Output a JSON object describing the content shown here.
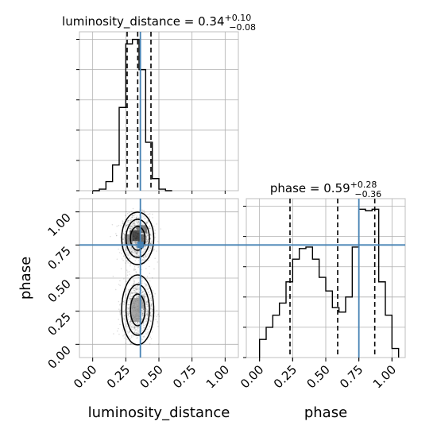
{
  "chart_data": [
    {
      "type": "histogram",
      "panel": "luminosity_distance marginal",
      "title": {
        "param": "luminosity_distance",
        "value": "0.34",
        "plus": "+0.10",
        "minus": "−0.08"
      },
      "x_range": [
        -0.1,
        1.1
      ],
      "y_range": [
        0,
        1.05
      ],
      "y_ticks": [
        0,
        0.2,
        0.4,
        0.6,
        0.8,
        1.0
      ],
      "grid": true,
      "bin_edges": [
        0.0,
        0.05,
        0.1,
        0.15,
        0.2,
        0.25,
        0.3,
        0.35,
        0.4,
        0.45,
        0.5,
        0.55,
        0.6
      ],
      "values": [
        0.0,
        0.01,
        0.06,
        0.17,
        0.55,
        0.97,
        1.0,
        0.8,
        0.32,
        0.08,
        0.01,
        0.0
      ],
      "quantiles": [
        0.26,
        0.34,
        0.44
      ],
      "truth": 0.36
    },
    {
      "type": "histogram",
      "panel": "phase marginal",
      "title": {
        "param": "phase",
        "value": "0.59",
        "plus": "+0.28",
        "minus": "−0.36"
      },
      "x_range": [
        -0.1,
        1.1
      ],
      "y_range": [
        0,
        1.05
      ],
      "y_ticks": [
        0,
        0.2,
        0.4,
        0.6,
        0.8,
        1.0
      ],
      "grid": true,
      "bin_edges": [
        0.0,
        0.05,
        0.1,
        0.15,
        0.2,
        0.25,
        0.3,
        0.35,
        0.4,
        0.45,
        0.5,
        0.55,
        0.6,
        0.65,
        0.7,
        0.75,
        0.8,
        0.85,
        0.9,
        0.95,
        1.0,
        1.05
      ],
      "values": [
        0.12,
        0.2,
        0.28,
        0.36,
        0.5,
        0.65,
        0.72,
        0.73,
        0.65,
        0.53,
        0.44,
        0.33,
        0.3,
        0.4,
        0.73,
        0.98,
        0.97,
        0.98,
        0.5,
        0.28,
        0.06
      ],
      "quantiles": [
        0.23,
        0.59,
        0.87
      ],
      "truth": 0.75
    },
    {
      "type": "2d-histogram",
      "panel": "luminosity_distance vs phase",
      "xlabel": "luminosity_distance",
      "ylabel": "phase",
      "x_range": [
        -0.1,
        1.1
      ],
      "y_range": [
        -0.1,
        1.1
      ],
      "x_ticks": [
        "0.00",
        "0.25",
        "0.50",
        "0.75",
        "1.00"
      ],
      "y_ticks": [
        "0.00",
        "0.25",
        "0.50",
        "0.75",
        "1.00"
      ],
      "grid": true,
      "truth": {
        "x": 0.36,
        "y": 0.75
      },
      "clusters": [
        {
          "x": 0.34,
          "y": 0.8,
          "sx": 0.055,
          "sy": 0.09,
          "n": 1100
        },
        {
          "x": 0.34,
          "y": 0.26,
          "sx": 0.055,
          "sy": 0.12,
          "n": 1000
        }
      ],
      "cells": [
        {
          "x": 0.32,
          "y": 0.82,
          "w": 0.08,
          "h": 0.08,
          "shade": 0.1
        },
        {
          "x": 0.37,
          "y": 0.87,
          "w": 0.08,
          "h": 0.06,
          "shade": 0.35
        },
        {
          "x": 0.37,
          "y": 0.79,
          "w": 0.06,
          "h": 0.08,
          "shade": 0.28
        },
        {
          "x": 0.27,
          "y": 0.79,
          "w": 0.06,
          "h": 0.08,
          "shade": 0.45
        },
        {
          "x": 0.32,
          "y": 0.26,
          "w": 0.07,
          "h": 0.18,
          "shade": 0.55
        },
        {
          "x": 0.37,
          "y": 0.32,
          "w": 0.05,
          "h": 0.1,
          "shade": 0.6
        }
      ]
    }
  ],
  "colors": {
    "truth": "#4682b4",
    "hist": "#000000",
    "grid": "#b0b0b0",
    "frame": "#bfbfbf"
  }
}
